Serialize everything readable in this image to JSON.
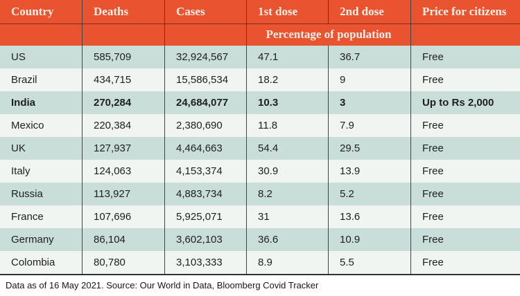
{
  "colors": {
    "accent": "#e9532f",
    "header_text": "#faf3ec",
    "row_teal": "#c9ded8",
    "row_light": "#f1f5f2",
    "grid_line": "#3e4443",
    "border_dark": "#2e3331"
  },
  "chart_data": {
    "type": "table",
    "columns": [
      "Country",
      "Deaths",
      "Cases",
      "1st dose",
      "2nd dose",
      "Price for citizens"
    ],
    "subheader": "Percentage of population",
    "rows": [
      {
        "country": "US",
        "deaths": "585,709",
        "cases": "32,924,567",
        "dose1": "47.1",
        "dose2": "36.7",
        "price": "Free"
      },
      {
        "country": "Brazil",
        "deaths": "434,715",
        "cases": "15,586,534",
        "dose1": "18.2",
        "dose2": "9",
        "price": "Free"
      },
      {
        "country": "India",
        "deaths": "270,284",
        "cases": "24,684,077",
        "dose1": "10.3",
        "dose2": "3",
        "price": "Up to Rs 2,000"
      },
      {
        "country": "Mexico",
        "deaths": "220,384",
        "cases": "2,380,690",
        "dose1": "11.8",
        "dose2": "7.9",
        "price": "Free"
      },
      {
        "country": "UK",
        "deaths": "127,937",
        "cases": "4,464,663",
        "dose1": "54.4",
        "dose2": "29.5",
        "price": "Free"
      },
      {
        "country": "Italy",
        "deaths": "124,063",
        "cases": "4,153,374",
        "dose1": "30.9",
        "dose2": "13.9",
        "price": "Free"
      },
      {
        "country": "Russia",
        "deaths": "113,927",
        "cases": "4,883,734",
        "dose1": "8.2",
        "dose2": "5.2",
        "price": "Free"
      },
      {
        "country": "France",
        "deaths": "107,696",
        "cases": "5,925,071",
        "dose1": "31",
        "dose2": "13.6",
        "price": "Free"
      },
      {
        "country": "Germany",
        "deaths": "86,104",
        "cases": "3,602,103",
        "dose1": "36.6",
        "dose2": "10.9",
        "price": "Free"
      },
      {
        "country": "Colombia",
        "deaths": "80,780",
        "cases": "3,103,333",
        "dose1": "8.9",
        "dose2": "5.5",
        "price": "Free"
      }
    ],
    "highlighted_row": "India",
    "footer": "Data as of 16 May 2021. Source: Our World in Data, Bloomberg Covid Tracker"
  }
}
